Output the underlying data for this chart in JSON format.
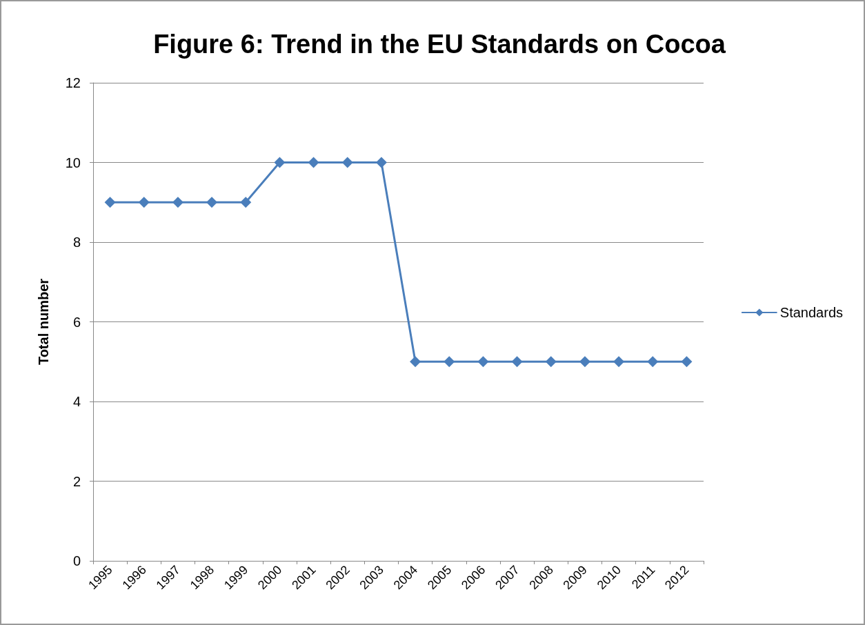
{
  "chart_data": {
    "type": "line",
    "title": "Figure 6: Trend in the EU Standards on Cocoa",
    "ylabel": "Total number",
    "categories": [
      "1995",
      "1996",
      "1997",
      "1998",
      "1999",
      "2000",
      "2001",
      "2002",
      "2003",
      "2004",
      "2005",
      "2006",
      "2007",
      "2008",
      "2009",
      "2010",
      "2011",
      "2012"
    ],
    "series": [
      {
        "name": "Standards",
        "color": "#4a7ebb",
        "values": [
          9,
          9,
          9,
          9,
          9,
          10,
          10,
          10,
          10,
          5,
          5,
          5,
          5,
          5,
          5,
          5,
          5,
          5
        ]
      }
    ],
    "ylim": [
      0,
      12
    ],
    "yticks": [
      0,
      2,
      4,
      6,
      8,
      10,
      12
    ],
    "grid": "y",
    "legend": "right",
    "marker": "diamond",
    "line_style": "solid"
  }
}
